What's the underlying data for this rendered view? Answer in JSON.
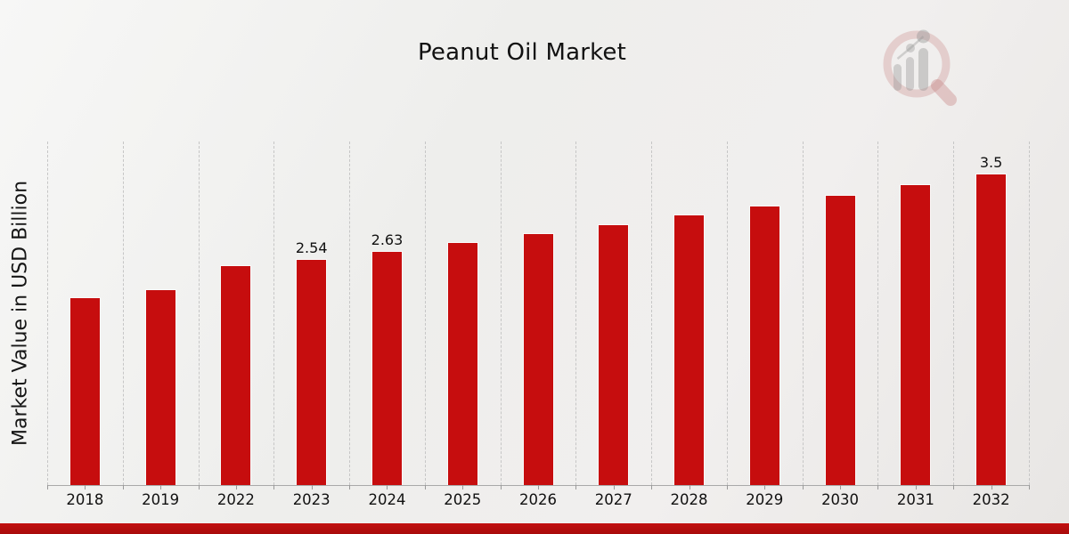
{
  "page": {
    "title": "Peanut Oil Market"
  },
  "logo": {
    "name": "market-research-watermark",
    "ring_color": "rgba(198,130,130,0.30)",
    "bars_color": "rgba(150,150,150,0.38)"
  },
  "chart_data": {
    "type": "bar",
    "title": "Peanut Oil Market",
    "xlabel": "",
    "ylabel": "Market Value in USD Billion",
    "categories": [
      "2018",
      "2019",
      "2022",
      "2023",
      "2024",
      "2025",
      "2026",
      "2027",
      "2028",
      "2029",
      "2030",
      "2031",
      "2032"
    ],
    "values": [
      2.11,
      2.2,
      2.47,
      2.54,
      2.63,
      2.73,
      2.83,
      2.93,
      3.04,
      3.14,
      3.26,
      3.38,
      3.5
    ],
    "data_labels": {
      "2023": "2.54",
      "2024": "2.63",
      "2032": "3.5"
    },
    "ylim": [
      0,
      3.86
    ],
    "grid": "vertical-dashed",
    "legend": "none",
    "bar_color": "#c60d0e",
    "bar_border_color": "#fafafa",
    "axis_color": "#a9a9a9",
    "gridline_color": "#c6c6c6"
  },
  "footer": {
    "accent_color_top": "#c21010",
    "accent_color_bottom": "#a80b0b"
  }
}
